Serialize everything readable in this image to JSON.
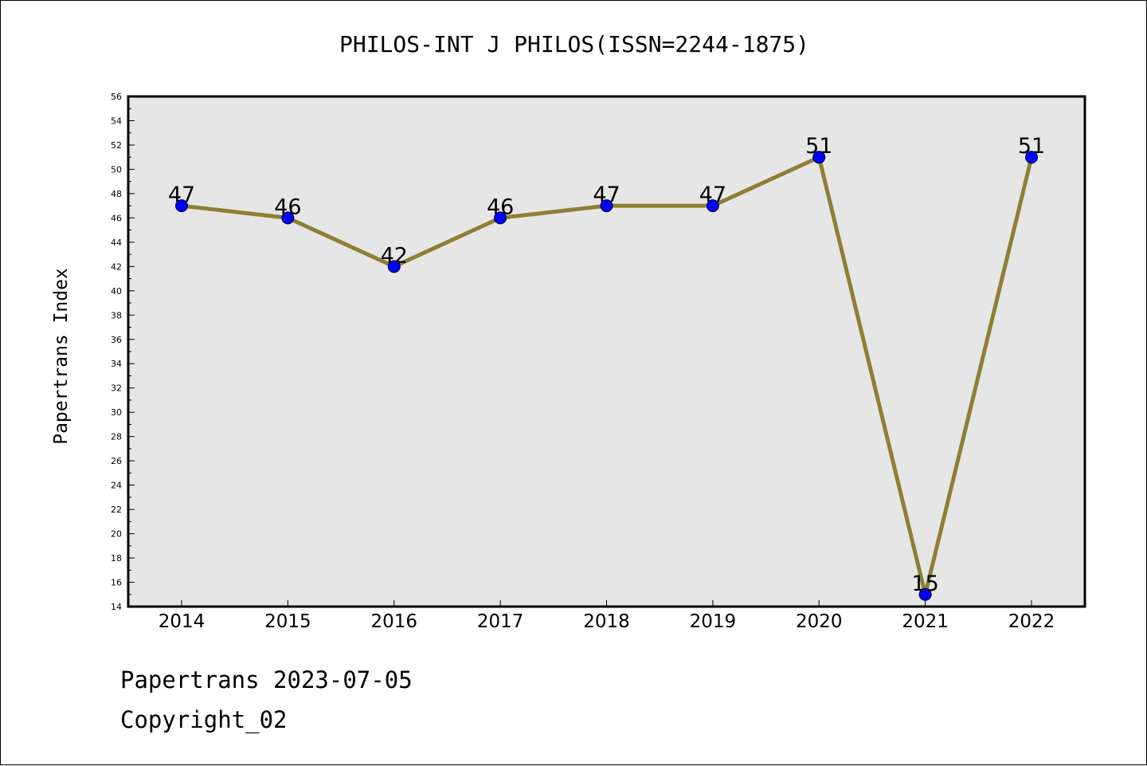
{
  "chart_data": {
    "type": "line",
    "title": "PHILOS-INT J PHILOS(ISSN=2244-1875)",
    "xlabel": "",
    "ylabel": "Papertrans Index",
    "categories": [
      "2014",
      "2015",
      "2016",
      "2017",
      "2018",
      "2019",
      "2020",
      "2021",
      "2022"
    ],
    "series": [
      {
        "values": [
          47,
          46,
          42,
          46,
          47,
          47,
          51,
          15,
          51
        ],
        "labels": [
          "47",
          "46",
          "42",
          "46",
          "47",
          "47",
          "51",
          "15",
          "51"
        ]
      }
    ],
    "ylim": [
      14,
      56
    ],
    "yticks": [
      "14",
      "16",
      "18",
      "20",
      "22",
      "24",
      "26",
      "28",
      "30",
      "32",
      "34",
      "36",
      "38",
      "40",
      "42",
      "44",
      "46",
      "48",
      "50",
      "52",
      "54",
      "56"
    ],
    "grid": false,
    "legend": "none",
    "colors": {
      "line": "#8f7f35",
      "marker": "#0000ff",
      "plot_background": "#e6e6e6",
      "axes_border": "#000000"
    }
  },
  "footer": {
    "date_text": "Papertrans 2023-07-05",
    "copyright_text": "Copyright_02"
  }
}
